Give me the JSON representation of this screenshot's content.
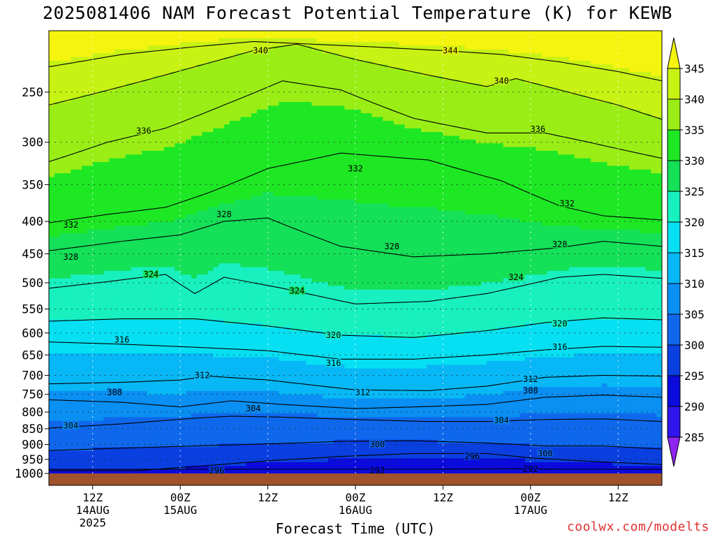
{
  "title": "2025081406 NAM Forecast Potential Temperature (K) for KEWB",
  "credit": "coolwx.com/modelts",
  "chart_data": {
    "type": "heatmap",
    "title": "2025081406 NAM Forecast Potential Temperature (K) for KEWB",
    "xlabel": "Forecast Time (UTC)",
    "ylabel": "",
    "x_range_hours": [
      0,
      84
    ],
    "x_ticks": [
      {
        "hour": 6,
        "lines": [
          "12Z",
          "14AUG",
          "2025"
        ]
      },
      {
        "hour": 18,
        "lines": [
          "00Z",
          "15AUG"
        ]
      },
      {
        "hour": 30,
        "lines": [
          "12Z"
        ]
      },
      {
        "hour": 42,
        "lines": [
          "00Z",
          "16AUG"
        ]
      },
      {
        "hour": 54,
        "lines": [
          "12Z"
        ]
      },
      {
        "hour": 66,
        "lines": [
          "00Z",
          "17AUG"
        ]
      },
      {
        "hour": 78,
        "lines": [
          "12Z"
        ]
      }
    ],
    "y_scale": "log-pressure",
    "y_range_hpa": [
      1000,
      200
    ],
    "y_ticks": [
      250,
      300,
      350,
      400,
      450,
      500,
      550,
      600,
      650,
      700,
      750,
      800,
      850,
      900,
      950,
      1000
    ],
    "grid": true,
    "colorbar": {
      "levels": [
        285,
        290,
        295,
        300,
        305,
        310,
        315,
        320,
        325,
        330,
        335,
        340,
        345
      ],
      "tick_labels": [
        285,
        290,
        295,
        300,
        305,
        310,
        315,
        320,
        325,
        330,
        335,
        340,
        345
      ],
      "colors": [
        "#8e24ee",
        "#3214ec",
        "#0b0bdc",
        "#0a3fe0",
        "#0f68ec",
        "#0a8ff2",
        "#08b8f6",
        "#06e0f2",
        "#18f0c0",
        "#14e058",
        "#1ee824",
        "#9aee16",
        "#c8f214",
        "#f4f40e"
      ],
      "placement": "right"
    },
    "contour_interval": 4,
    "contour_series": [
      {
        "name": "292",
        "points": [
          [
            40,
            985
          ],
          [
            52,
            985
          ],
          [
            64,
            983
          ],
          [
            70,
            985
          ]
        ]
      },
      {
        "name": "296",
        "points": [
          [
            12,
            990
          ],
          [
            20,
            975
          ],
          [
            30,
            955
          ],
          [
            40,
            940
          ],
          [
            50,
            930
          ],
          [
            60,
            930
          ],
          [
            66,
            945
          ],
          [
            75,
            958
          ],
          [
            84,
            968
          ]
        ]
      },
      {
        "name": "300",
        "points": [
          [
            0,
            920
          ],
          [
            10,
            912
          ],
          [
            20,
            905
          ],
          [
            30,
            898
          ],
          [
            40,
            890
          ],
          [
            50,
            888
          ],
          [
            60,
            895
          ],
          [
            68,
            905
          ],
          [
            76,
            905
          ],
          [
            84,
            915
          ]
        ]
      },
      {
        "name": "304",
        "points": [
          [
            0,
            848
          ],
          [
            10,
            835
          ],
          [
            20,
            818
          ],
          [
            25,
            812
          ],
          [
            32,
            815
          ],
          [
            42,
            822
          ],
          [
            52,
            828
          ],
          [
            60,
            828
          ],
          [
            68,
            822
          ],
          [
            76,
            820
          ],
          [
            84,
            828
          ]
        ]
      },
      {
        "name": "308",
        "points": [
          [
            0,
            765
          ],
          [
            10,
            772
          ],
          [
            18,
            785
          ],
          [
            25,
            768
          ],
          [
            32,
            778
          ],
          [
            42,
            790
          ],
          [
            52,
            784
          ],
          [
            60,
            778
          ],
          [
            68,
            758
          ],
          [
            76,
            752
          ],
          [
            84,
            758
          ]
        ]
      },
      {
        "name": "312",
        "points": [
          [
            0,
            722
          ],
          [
            10,
            718
          ],
          [
            18,
            712
          ],
          [
            22,
            702
          ],
          [
            30,
            712
          ],
          [
            42,
            738
          ],
          [
            52,
            740
          ],
          [
            60,
            728
          ],
          [
            68,
            705
          ],
          [
            76,
            700
          ],
          [
            84,
            702
          ]
        ]
      },
      {
        "name": "316",
        "points": [
          [
            0,
            620
          ],
          [
            10,
            625
          ],
          [
            20,
            632
          ],
          [
            30,
            640
          ],
          [
            40,
            660
          ],
          [
            50,
            660
          ],
          [
            60,
            650
          ],
          [
            68,
            638
          ],
          [
            76,
            630
          ],
          [
            84,
            632
          ]
        ]
      },
      {
        "name": "320",
        "points": [
          [
            0,
            575
          ],
          [
            10,
            570
          ],
          [
            20,
            570
          ],
          [
            30,
            585
          ],
          [
            40,
            605
          ],
          [
            50,
            610
          ],
          [
            60,
            595
          ],
          [
            68,
            578
          ],
          [
            76,
            568
          ],
          [
            84,
            572
          ]
        ]
      },
      {
        "name": "324",
        "points": [
          [
            0,
            510
          ],
          [
            8,
            498
          ],
          [
            16,
            485
          ],
          [
            20,
            520
          ],
          [
            24,
            490
          ],
          [
            32,
            510
          ],
          [
            42,
            540
          ],
          [
            52,
            535
          ],
          [
            60,
            520
          ],
          [
            70,
            490
          ],
          [
            76,
            485
          ],
          [
            84,
            492
          ]
        ]
      },
      {
        "name": "328",
        "points": [
          [
            0,
            445
          ],
          [
            10,
            430
          ],
          [
            18,
            420
          ],
          [
            24,
            400
          ],
          [
            30,
            395
          ],
          [
            40,
            438
          ],
          [
            50,
            455
          ],
          [
            60,
            450
          ],
          [
            70,
            440
          ],
          [
            76,
            430
          ],
          [
            84,
            438
          ]
        ]
      },
      {
        "name": "332",
        "points": [
          [
            0,
            402
          ],
          [
            8,
            390
          ],
          [
            16,
            380
          ],
          [
            22,
            360
          ],
          [
            30,
            330
          ],
          [
            40,
            312
          ],
          [
            52,
            320
          ],
          [
            62,
            345
          ],
          [
            70,
            378
          ],
          [
            76,
            392
          ],
          [
            84,
            398
          ]
        ]
      },
      {
        "name": "336",
        "points": [
          [
            0,
            322
          ],
          [
            8,
            300
          ],
          [
            16,
            285
          ],
          [
            24,
            262
          ],
          [
            32,
            240
          ],
          [
            40,
            248
          ],
          [
            50,
            275
          ],
          [
            60,
            290
          ],
          [
            68,
            290
          ],
          [
            74,
            300
          ],
          [
            84,
            318
          ]
        ]
      },
      {
        "name": "340",
        "points": [
          [
            0,
            262
          ],
          [
            10,
            245
          ],
          [
            20,
            228
          ],
          [
            28,
            215
          ],
          [
            34,
            210
          ],
          [
            42,
            222
          ],
          [
            52,
            235
          ],
          [
            60,
            245
          ],
          [
            64,
            238
          ],
          [
            70,
            248
          ],
          [
            78,
            262
          ],
          [
            84,
            276
          ]
        ]
      },
      {
        "name": "344",
        "points": [
          [
            0,
            228
          ],
          [
            10,
            218
          ],
          [
            20,
            212
          ],
          [
            28,
            208
          ],
          [
            36,
            210
          ],
          [
            44,
            212
          ],
          [
            54,
            215
          ],
          [
            62,
            218
          ],
          [
            70,
            224
          ],
          [
            78,
            232
          ],
          [
            84,
            240
          ]
        ]
      }
    ],
    "contour_labels": [
      {
        "text": "340",
        "x_hour": 29,
        "p": 215
      },
      {
        "text": "344",
        "x_hour": 55,
        "p": 215
      },
      {
        "text": "340",
        "x_hour": 62,
        "p": 240
      },
      {
        "text": "336",
        "x_hour": 13,
        "p": 288
      },
      {
        "text": "336",
        "x_hour": 67,
        "p": 286
      },
      {
        "text": "332",
        "x_hour": 42,
        "p": 330
      },
      {
        "text": "332",
        "x_hour": 71,
        "p": 375
      },
      {
        "text": "332",
        "x_hour": 3,
        "p": 405
      },
      {
        "text": "328",
        "x_hour": 24,
        "p": 390
      },
      {
        "text": "328",
        "x_hour": 47,
        "p": 438
      },
      {
        "text": "328",
        "x_hour": 70,
        "p": 435
      },
      {
        "text": "328",
        "x_hour": 3,
        "p": 455
      },
      {
        "text": "324",
        "x_hour": 14,
        "p": 485
      },
      {
        "text": "324",
        "x_hour": 34,
        "p": 515
      },
      {
        "text": "324",
        "x_hour": 64,
        "p": 490
      },
      {
        "text": "320",
        "x_hour": 39,
        "p": 605
      },
      {
        "text": "320",
        "x_hour": 70,
        "p": 580
      },
      {
        "text": "316",
        "x_hour": 10,
        "p": 615
      },
      {
        "text": "316",
        "x_hour": 39,
        "p": 670
      },
      {
        "text": "316",
        "x_hour": 70,
        "p": 632
      },
      {
        "text": "312",
        "x_hour": 21,
        "p": 700
      },
      {
        "text": "312",
        "x_hour": 43,
        "p": 745
      },
      {
        "text": "312",
        "x_hour": 66,
        "p": 710
      },
      {
        "text": "308",
        "x_hour": 9,
        "p": 745
      },
      {
        "text": "308",
        "x_hour": 66,
        "p": 740
      },
      {
        "text": "304",
        "x_hour": 28,
        "p": 790
      },
      {
        "text": "304",
        "x_hour": 62,
        "p": 825
      },
      {
        "text": "304",
        "x_hour": 3,
        "p": 840
      },
      {
        "text": "300",
        "x_hour": 45,
        "p": 900
      },
      {
        "text": "300",
        "x_hour": 68,
        "p": 930
      },
      {
        "text": "296",
        "x_hour": 58,
        "p": 940
      },
      {
        "text": "296",
        "x_hour": 23,
        "p": 990
      },
      {
        "text": "292",
        "x_hour": 45,
        "p": 990
      },
      {
        "text": "292",
        "x_hour": 66,
        "p": 985
      }
    ],
    "ground_color": "#a0522d"
  }
}
